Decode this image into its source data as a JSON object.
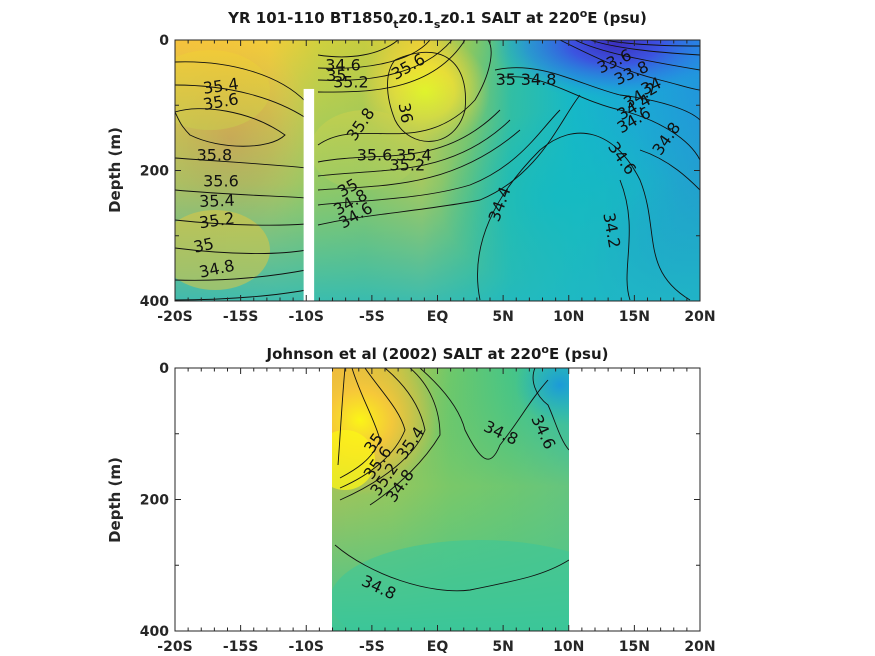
{
  "chart_data": [
    {
      "type": "heatmap",
      "title_parts": {
        "main": "YR 101-110 BT1850",
        "sub1": "t",
        "mid": "z0.1",
        "sub2": "s",
        "end": "z0.1 SALT at 220",
        "sup": "o",
        "tail": "E (psu)"
      },
      "ylabel": "Depth (m)",
      "xlim": [
        -20,
        20
      ],
      "ylim": [
        0,
        400
      ],
      "xticks": [
        {
          "value": -20,
          "label": "-20S"
        },
        {
          "value": -15,
          "label": "-15S"
        },
        {
          "value": -10,
          "label": "-10S"
        },
        {
          "value": -5,
          "label": "-5S"
        },
        {
          "value": 0,
          "label": "EQ"
        },
        {
          "value": 5,
          "label": "5N"
        },
        {
          "value": 10,
          "label": "10N"
        },
        {
          "value": 15,
          "label": "15N"
        },
        {
          "value": 20,
          "label": "20N"
        }
      ],
      "yticks": [
        {
          "value": 0,
          "label": "0"
        },
        {
          "value": 200,
          "label": "200"
        },
        {
          "value": 400,
          "label": "400"
        }
      ],
      "missing_band": {
        "x_from": -10.2,
        "x_to": -9.4,
        "y_from": 75,
        "y_to": 400
      },
      "contour_labels": [
        {
          "text": "35.4",
          "x": -16.5,
          "y": 72,
          "angle": -8
        },
        {
          "text": "35.6",
          "x": -16.5,
          "y": 96,
          "angle": -10
        },
        {
          "text": "35.8",
          "x": -17.0,
          "y": 178,
          "angle": 0
        },
        {
          "text": "35.6",
          "x": -16.5,
          "y": 218,
          "angle": 0
        },
        {
          "text": "35.4",
          "x": -16.8,
          "y": 248,
          "angle": -2
        },
        {
          "text": "35.2",
          "x": -16.8,
          "y": 278,
          "angle": -8
        },
        {
          "text": "35",
          "x": -17.8,
          "y": 316,
          "angle": -12
        },
        {
          "text": "34.8",
          "x": -16.8,
          "y": 352,
          "angle": -12
        },
        {
          "text": "34.6",
          "x": -7.2,
          "y": 40,
          "angle": 0
        },
        {
          "text": "35",
          "x": -7.7,
          "y": 56,
          "angle": 0
        },
        {
          "text": "35.2",
          "x": -6.6,
          "y": 66,
          "angle": 0
        },
        {
          "text": "35.6",
          "x": -2.2,
          "y": 42,
          "angle": -30
        },
        {
          "text": "36",
          "x": -2.5,
          "y": 112,
          "angle": 80
        },
        {
          "text": "35.8",
          "x": -5.8,
          "y": 130,
          "angle": -55
        },
        {
          "text": "35.6",
          "x": -4.8,
          "y": 178,
          "angle": 0
        },
        {
          "text": "35.4",
          "x": -1.8,
          "y": 178,
          "angle": 0
        },
        {
          "text": "35.2",
          "x": -2.3,
          "y": 193,
          "angle": 0
        },
        {
          "text": "35",
          "x": -6.8,
          "y": 228,
          "angle": -30
        },
        {
          "text": "34.8",
          "x": -6.6,
          "y": 250,
          "angle": -30
        },
        {
          "text": "34.6",
          "x": -6.2,
          "y": 270,
          "angle": -30
        },
        {
          "text": "35",
          "x": 5.2,
          "y": 62,
          "angle": 0
        },
        {
          "text": "34.8",
          "x": 7.7,
          "y": 62,
          "angle": 0
        },
        {
          "text": "33.6",
          "x": 13.5,
          "y": 34,
          "angle": -25
        },
        {
          "text": "33.8",
          "x": 14.8,
          "y": 52,
          "angle": -25
        },
        {
          "text": "34",
          "x": 16.3,
          "y": 72,
          "angle": -25
        },
        {
          "text": "34.2",
          "x": 15.5,
          "y": 86,
          "angle": -30
        },
        {
          "text": "34.4",
          "x": 15.0,
          "y": 104,
          "angle": -30
        },
        {
          "text": "34.6",
          "x": 15.0,
          "y": 124,
          "angle": -30
        },
        {
          "text": "34.6",
          "x": 14.0,
          "y": 182,
          "angle": 55
        },
        {
          "text": "34.8",
          "x": 17.5,
          "y": 152,
          "angle": -55
        },
        {
          "text": "34.4",
          "x": 4.8,
          "y": 252,
          "angle": -70
        },
        {
          "text": "34.2",
          "x": 13.2,
          "y": 292,
          "angle": 80
        }
      ]
    },
    {
      "type": "heatmap",
      "title_parts": {
        "main": "Johnson et al (2002) SALT at 220",
        "sup": "o",
        "tail": "E (psu)"
      },
      "ylabel": "Depth (m)",
      "xlim": [
        -20,
        20
      ],
      "ylim": [
        0,
        400
      ],
      "data_x_range": [
        -8,
        10
      ],
      "xticks": [
        {
          "value": -20,
          "label": "-20S"
        },
        {
          "value": -15,
          "label": "-15S"
        },
        {
          "value": -10,
          "label": "-10S"
        },
        {
          "value": -5,
          "label": "-5S"
        },
        {
          "value": 0,
          "label": "EQ"
        },
        {
          "value": 5,
          "label": "5N"
        },
        {
          "value": 10,
          "label": "10N"
        },
        {
          "value": 15,
          "label": "15N"
        },
        {
          "value": 20,
          "label": "20N"
        }
      ],
      "yticks": [
        {
          "value": 0,
          "label": "0"
        },
        {
          "value": 200,
          "label": "200"
        },
        {
          "value": 400,
          "label": "400"
        }
      ],
      "contour_labels": [
        {
          "text": "34.8",
          "x": 4.8,
          "y": 100,
          "angle": 25
        },
        {
          "text": "34.6",
          "x": 8.0,
          "y": 98,
          "angle": 65
        },
        {
          "text": "35.4",
          "x": -2.0,
          "y": 115,
          "angle": -55
        },
        {
          "text": "35",
          "x": -4.8,
          "y": 115,
          "angle": -55
        },
        {
          "text": "35.6",
          "x": -4.5,
          "y": 145,
          "angle": -55
        },
        {
          "text": "35.2",
          "x": -4.0,
          "y": 170,
          "angle": -55
        },
        {
          "text": "34.8",
          "x": -2.8,
          "y": 180,
          "angle": -55
        },
        {
          "text": "34.8",
          "x": -4.5,
          "y": 335,
          "angle": 25
        }
      ]
    }
  ]
}
